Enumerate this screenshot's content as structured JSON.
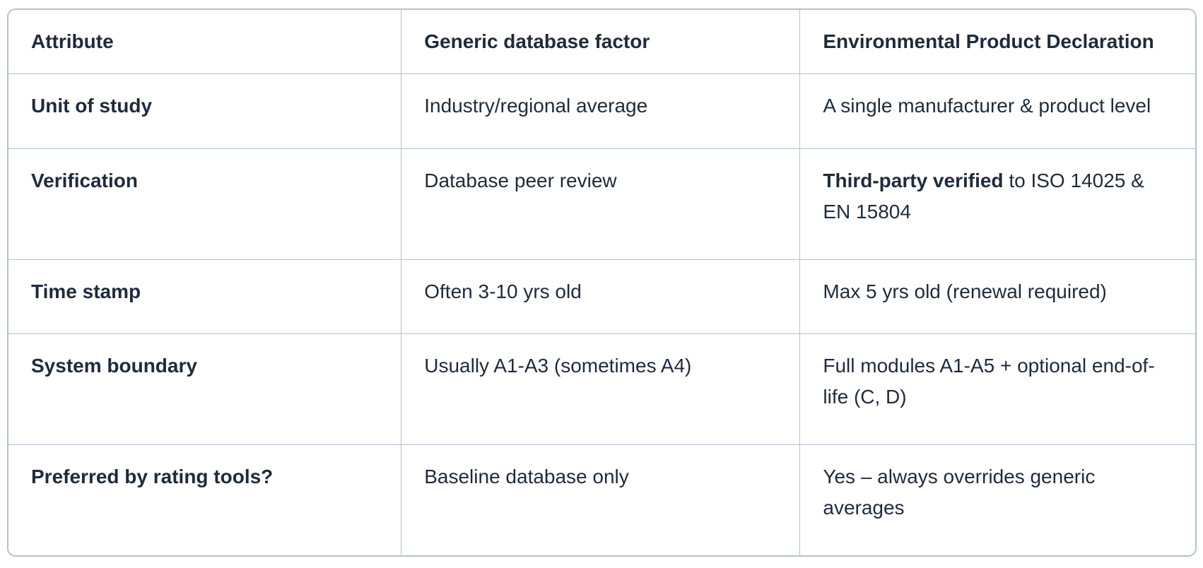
{
  "header": {
    "attribute": "Attribute",
    "generic": "Generic database factor",
    "epd": "Environmental Product Declaration"
  },
  "rows": [
    {
      "attribute": "Unit of study",
      "generic": "Industry/regional average",
      "epd": "A single manufacturer & product level"
    },
    {
      "attribute": "Verification",
      "generic": "Database peer review",
      "epd_bold": "Third-party verified",
      "epd": " to ISO 14025 & EN 15804"
    },
    {
      "attribute": "Time stamp",
      "generic": "Often 3-10 yrs old",
      "epd": "Max 5 yrs old (renewal required)"
    },
    {
      "attribute": "System boundary",
      "generic": "Usually A1-A3 (sometimes A4)",
      "epd": "Full modules A1-A5 + optional end-of-life (C, D)"
    },
    {
      "attribute": "Preferred by rating tools?",
      "generic": "Baseline database only",
      "epd": "Yes – always overrides generic averages"
    }
  ],
  "colors": {
    "text": "#1e2b3c",
    "border": "#b3c2ce",
    "background": "#ffffff"
  }
}
